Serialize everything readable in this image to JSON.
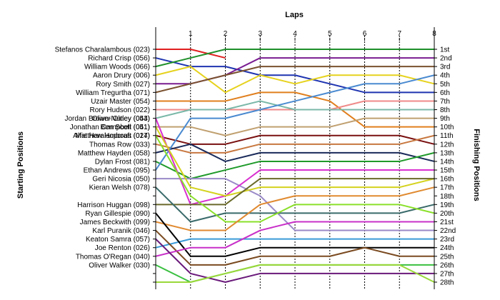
{
  "chart_data": {
    "type": "line",
    "title": "Laps",
    "ylabel_left": "Starting Positions",
    "ylabel_right": "Finishing Positions",
    "laps": [
      0,
      1,
      2,
      3,
      4,
      5,
      6,
      7,
      8
    ],
    "lap_labels": [
      "1",
      "2",
      "3",
      "4",
      "5",
      "6",
      "7",
      "8"
    ],
    "finishing_labels": [
      "1st",
      "2nd",
      "3rd",
      "4th",
      "5th",
      "6th",
      "7th",
      "8th",
      "9th",
      "10th",
      "11th",
      "12th",
      "13th",
      "14th",
      "15th",
      "16th",
      "17th",
      "18th",
      "19th",
      "20th",
      "21st",
      "22nd",
      "23rd",
      "24th",
      "25th",
      "26th",
      "27th",
      "28th"
    ],
    "series": [
      {
        "name": "Stefanos Charalambous (023)",
        "color": "#e0201f",
        "positions": [
          1,
          1,
          2
        ]
      },
      {
        "name": "Richard Crisp (056)",
        "color": "#1f34b0",
        "positions": [
          2,
          3,
          3,
          4,
          4,
          5,
          6,
          6,
          6
        ]
      },
      {
        "name": "William Woods (066)",
        "color": "#1f8f2a",
        "positions": [
          3,
          2,
          1,
          1,
          1,
          1,
          1,
          1,
          1
        ]
      },
      {
        "name": "Aaron Drury (006)",
        "color": "#e6d21e",
        "positions": [
          4,
          3,
          6,
          4,
          5,
          4,
          4,
          4,
          5
        ]
      },
      {
        "name": "Rory Smith (027)",
        "color": "#7a1d91",
        "positions": [
          5,
          5,
          4,
          2,
          2,
          2,
          2,
          2,
          2
        ]
      },
      {
        "name": "William Tregurtha (071)",
        "color": "#7a5230",
        "positions": [
          6,
          5,
          4,
          3,
          3,
          3,
          3,
          3,
          3
        ]
      },
      {
        "name": "Uzair Master (054)",
        "color": "#e07f1e",
        "positions": [
          7,
          7,
          7,
          6,
          6,
          7,
          10,
          10,
          10
        ]
      },
      {
        "name": "Rory Hudson (022)",
        "color": "#f08a8a",
        "positions": [
          8,
          8,
          8,
          8,
          8,
          8,
          7,
          7,
          7
        ]
      },
      {
        "name": "Jordan Brown-Nutley (053)",
        "color": "#7ab8a8",
        "positions": [
          9,
          8,
          8,
          7,
          8,
          8,
          8,
          8,
          8
        ]
      },
      {
        "name": "Jonathan Campbell (041)",
        "color": "#c0a070",
        "positions": [
          10,
          10,
          11,
          10,
          10,
          10,
          9,
          9,
          9
        ]
      },
      {
        "name": "Matthew Hopcraft (017)",
        "color": "#7a1010",
        "positions": [
          11,
          12,
          12,
          11,
          11,
          11,
          11,
          11,
          12
        ]
      },
      {
        "name": "Thomas Row (033)",
        "color": "#c87840",
        "positions": [
          12,
          13,
          13,
          12,
          12,
          12,
          12,
          12,
          11
        ]
      },
      {
        "name": "Matthew Hayden (058)",
        "color": "#1a2a5a",
        "positions": [
          13,
          12,
          14,
          13,
          13,
          13,
          13,
          13,
          14
        ]
      },
      {
        "name": "Dylan Frost (081)",
        "color": "#1f9a2a",
        "positions": [
          14,
          16,
          15,
          14,
          14,
          14,
          14,
          14,
          13
        ]
      },
      {
        "name": "Ethan Andrews (095)",
        "color": "#4a8ad0",
        "positions": [
          15,
          9,
          9,
          8,
          7,
          6,
          5,
          5,
          4
        ]
      },
      {
        "name": "Geri Nicosia (050)",
        "color": "#9a8ac8",
        "positions": [
          16,
          16,
          16,
          18,
          22,
          22,
          22,
          22,
          22
        ]
      },
      {
        "name": "Oliver Olney (044)",
        "color": "#d830d0",
        "positions": [
          9,
          19,
          18,
          15,
          15,
          15,
          15,
          15,
          15
        ]
      },
      {
        "name": "Ben Scott (051)",
        "color": "#d4d21e",
        "positions": [
          10,
          17,
          18,
          17,
          17,
          17,
          17,
          17,
          16
        ]
      },
      {
        "name": "Harrison Huggan (098)",
        "color": "#6a6a2a",
        "positions": [
          19,
          19,
          19,
          16,
          16,
          16,
          16,
          16,
          16
        ]
      },
      {
        "name": "Kieran Welsh (078)",
        "color": "#3a6a6a",
        "positions": [
          17,
          21,
          20,
          20,
          20,
          20,
          20,
          20,
          19
        ]
      },
      {
        "name": "Alfie Haralambous (024)",
        "color": "#8ae02a",
        "positions": [
          11,
          18,
          21,
          21,
          19,
          19,
          19,
          19,
          20
        ]
      },
      {
        "name": "James Beckwith (099)",
        "color": "#e08a30",
        "positions": [
          21,
          22,
          22,
          19,
          18,
          18,
          18,
          18,
          17
        ]
      },
      {
        "name": "Joe Renton (026)",
        "color": "#3a9ad8",
        "positions": [
          24,
          23,
          23,
          23,
          23,
          23,
          23,
          23,
          23
        ]
      },
      {
        "name": "Ryan Gillespie (090)",
        "color": "#000000",
        "positions": [
          20,
          25,
          25,
          24,
          24,
          24,
          24,
          24,
          24
        ]
      },
      {
        "name": "Karl Puranik (046)",
        "color": "#7a4a20",
        "positions": [
          22,
          26,
          26,
          25,
          25,
          25,
          24,
          25,
          25
        ]
      },
      {
        "name": "Thomas O'Regan (040)",
        "color": "#c830c8",
        "positions": [
          25,
          24,
          24,
          22,
          21,
          21,
          21,
          21,
          21
        ]
      },
      {
        "name": "Oliver Walker (030)",
        "color": "#3ac040",
        "positions": [
          26,
          28,
          27,
          26,
          26,
          26,
          26,
          26,
          26
        ]
      },
      {
        "name": "Keaton Samra (057)",
        "color": "#6a1a7a",
        "positions": [
          23,
          27,
          28,
          27,
          27,
          27,
          27,
          27,
          27
        ]
      },
      {
        "name": "",
        "color": "#9ad83a",
        "positions": [
          28,
          28,
          27,
          26,
          26,
          26,
          26,
          26,
          28
        ]
      }
    ]
  }
}
